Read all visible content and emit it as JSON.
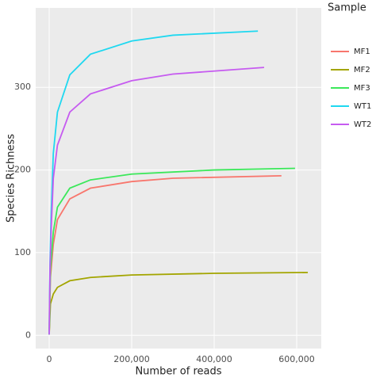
{
  "chart_data": {
    "type": "line",
    "xlabel": "Number of reads",
    "ylabel": "Species Richness",
    "legend_title": "Sample",
    "xlim": [
      -32700,
      659600
    ],
    "ylim": [
      -16,
      396
    ],
    "xticks": [
      0,
      {
        "value": 200000,
        "label": "200,000"
      },
      {
        "value": 400000,
        "label": "400,000"
      },
      {
        "value": 600000,
        "label": "600,000"
      }
    ],
    "yticks": [
      0,
      100,
      200,
      300
    ],
    "grid": true,
    "legend": "right",
    "series": [
      {
        "name": "MF1",
        "color": "#F8766D",
        "x": [
          0,
          3000,
          10000,
          20000,
          50000,
          100000,
          200000,
          300000,
          563000
        ],
        "values": [
          1,
          70,
          110,
          140,
          165,
          178,
          186,
          190,
          193
        ]
      },
      {
        "name": "MF2",
        "color": "#A3A500",
        "x": [
          0,
          3000,
          10000,
          20000,
          50000,
          100000,
          200000,
          400000,
          627000
        ],
        "values": [
          1,
          38,
          50,
          58,
          66,
          70,
          73,
          75,
          76
        ]
      },
      {
        "name": "MF3",
        "color": "#3BE85A",
        "x": [
          0,
          3000,
          10000,
          20000,
          50000,
          100000,
          200000,
          400000,
          596000
        ],
        "values": [
          1,
          80,
          125,
          155,
          178,
          188,
          195,
          200,
          202
        ]
      },
      {
        "name": "WT1",
        "color": "#1FD8F0",
        "x": [
          0,
          2000,
          5000,
          10000,
          20000,
          50000,
          100000,
          200000,
          300000,
          506000
        ],
        "values": [
          1,
          90,
          150,
          220,
          270,
          315,
          340,
          356,
          363,
          368
        ]
      },
      {
        "name": "WT2",
        "color": "#C65BF0",
        "x": [
          0,
          2000,
          5000,
          10000,
          20000,
          50000,
          100000,
          200000,
          300000,
          521000
        ],
        "values": [
          1,
          80,
          130,
          190,
          230,
          270,
          292,
          308,
          316,
          324
        ]
      }
    ]
  }
}
